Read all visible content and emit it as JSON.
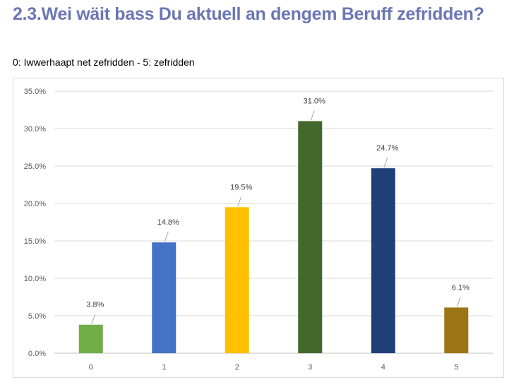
{
  "header": {
    "title": "2.3.Wei wäit bass Du aktuell an dengem Beruff zefridden?",
    "subtitle": "0: Iwwerhaapt net zefridden - 5: zefridden"
  },
  "chart_data": {
    "type": "bar",
    "title": "",
    "xlabel": "",
    "ylabel": "",
    "categories": [
      "0",
      "1",
      "2",
      "3",
      "4",
      "5"
    ],
    "values": [
      3.8,
      14.8,
      19.5,
      31.0,
      24.7,
      6.1
    ],
    "data_labels": [
      "3.8%",
      "14.8%",
      "19.5%",
      "31.0%",
      "24.7%",
      "6.1%"
    ],
    "bar_colors": [
      "#70ad47",
      "#4472c4",
      "#ffc000",
      "#43682b",
      "#203f77",
      "#9c7414"
    ],
    "ylim": [
      0,
      35
    ],
    "yticks": [
      0,
      5,
      10,
      15,
      20,
      25,
      30,
      35
    ],
    "ytick_labels": [
      "0.0%",
      "5.0%",
      "10.0%",
      "15.0%",
      "20.0%",
      "25.0%",
      "30.0%",
      "35.0%"
    ],
    "grid": true,
    "legend": "none"
  }
}
